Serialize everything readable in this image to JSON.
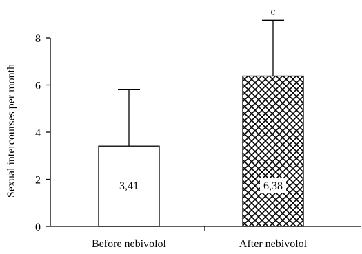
{
  "chart_data": {
    "type": "bar",
    "title": "",
    "xlabel": "",
    "ylabel": "Sexual intercourses per month",
    "ylim": [
      0,
      8
    ],
    "yticks": [
      0,
      2,
      4,
      6,
      8
    ],
    "grid": false,
    "categories": [
      "Before nebivolol",
      "After nebivolol"
    ],
    "values": [
      3.41,
      6.38
    ],
    "error_upper": [
      5.8,
      8.75
    ],
    "value_labels": [
      "3,41",
      "6,38"
    ],
    "annotations": [
      "",
      "c"
    ],
    "bar_fills": [
      "solid-white",
      "crosshatch"
    ],
    "colors": {
      "stroke": "#000000",
      "background": "#ffffff"
    }
  }
}
